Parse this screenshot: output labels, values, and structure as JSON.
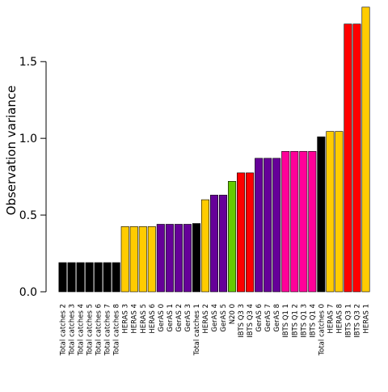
{
  "chart_data": {
    "type": "bar",
    "title": "",
    "xlabel": "",
    "ylabel": "Observation variance",
    "ylim": [
      0,
      1.87
    ],
    "yticks": [
      "0.0",
      "0.5",
      "1.0",
      "1.5"
    ],
    "ytick_values": [
      0,
      0.5,
      1.0,
      1.5
    ],
    "grid": false,
    "legend": "none",
    "bar_edge_color": "#000000",
    "bar_colors_by_group": {
      "Total catches": "#000000",
      "HERAS": "#FFCC00",
      "GerAS": "#660099",
      "N20": "#66CC00",
      "IBTS Q3": "#FF0000",
      "IBTS Q1": "#FF0099"
    },
    "categories": [
      "Total catches 2",
      "Total catches 3",
      "Total catches 4",
      "Total catches 5",
      "Total catches 6",
      "Total catches 7",
      "Total catches 8",
      "HERAS 3",
      "HERAS 4",
      "HERAS 5",
      "HERAS 6",
      "GerAS 0",
      "GerAS 1",
      "GerAS 2",
      "GerAS 3",
      "Total catches 1",
      "HERAS 2",
      "GerAS 4",
      "GerAS 5",
      "N20 0",
      "IBTS Q3 3",
      "IBTS Q3 4",
      "GerAS 6",
      "GerAS 7",
      "GerAS 8",
      "IBTS Q1 1",
      "IBTS Q1 2",
      "IBTS Q1 3",
      "IBTS Q1 4",
      "Total catches 0",
      "HERAS 7",
      "HERAS 8",
      "IBTS Q3 1",
      "IBTS Q3 2",
      "HERAS 1"
    ],
    "values": [
      0.19,
      0.19,
      0.19,
      0.19,
      0.19,
      0.19,
      0.19,
      0.425,
      0.425,
      0.425,
      0.425,
      0.44,
      0.44,
      0.44,
      0.44,
      0.445,
      0.6,
      0.63,
      0.63,
      0.72,
      0.775,
      0.775,
      0.87,
      0.87,
      0.87,
      0.915,
      0.915,
      0.915,
      0.915,
      1.01,
      1.045,
      1.045,
      1.745,
      1.745,
      1.855
    ],
    "colors": [
      "#000000",
      "#000000",
      "#000000",
      "#000000",
      "#000000",
      "#000000",
      "#000000",
      "#FFCC00",
      "#FFCC00",
      "#FFCC00",
      "#FFCC00",
      "#660099",
      "#660099",
      "#660099",
      "#660099",
      "#000000",
      "#FFCC00",
      "#660099",
      "#660099",
      "#66CC00",
      "#FF0000",
      "#FF0000",
      "#660099",
      "#660099",
      "#660099",
      "#FF0099",
      "#FF0099",
      "#FF0099",
      "#FF0099",
      "#000000",
      "#FFCC00",
      "#FFCC00",
      "#FF0000",
      "#FF0000",
      "#FFCC00"
    ]
  }
}
